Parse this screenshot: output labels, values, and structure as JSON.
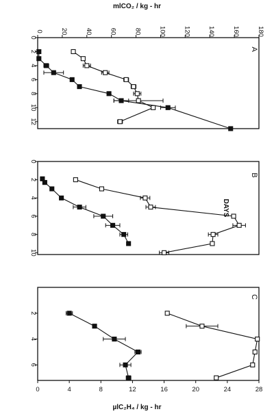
{
  "page": {
    "top_axis_label": "mlCO₂ / kg - hr",
    "side_axis_label": "DAYS",
    "bottom_axis_label": "µlC₂H₄ / kg - hr"
  },
  "chart_data": [
    {
      "type": "line",
      "panel_label": "A",
      "xlabel": "DAYS",
      "ylabel": "mlCO₂ / kg - hr",
      "x_ticks": [
        0,
        2,
        4,
        6,
        8,
        10,
        12
      ],
      "y_ticks": [
        0,
        20,
        40,
        60,
        80,
        100,
        120,
        140,
        160,
        180
      ],
      "xlim": [
        0,
        13
      ],
      "ylim": [
        0,
        180
      ],
      "series": [
        {
          "marker": "filled-square",
          "x": [
            2,
            3,
            4,
            5,
            6,
            7,
            8,
            9,
            10,
            13
          ],
          "y": [
            1,
            1,
            7,
            13,
            28,
            34,
            58,
            68,
            106,
            157
          ],
          "err": [
            0,
            0,
            2,
            8,
            0,
            0,
            0,
            6,
            6,
            0
          ]
        },
        {
          "marker": "open-square",
          "x": [
            2,
            3,
            4,
            5,
            6,
            7,
            8,
            9,
            10,
            12
          ],
          "y": [
            29,
            37,
            40,
            55,
            72,
            78,
            81,
            82,
            94,
            67
          ],
          "err": [
            0,
            0,
            3,
            3,
            2,
            2,
            3,
            20,
            0,
            2
          ]
        }
      ]
    },
    {
      "type": "line",
      "panel_label": "B",
      "xlabel": "DAYS",
      "ylabel": "µlC₂H₄ / kg - hr",
      "x_ticks": [
        0,
        2,
        4,
        6,
        8,
        10
      ],
      "xlim": [
        0,
        10.2
      ],
      "ylim": [
        0,
        28
      ],
      "series": [
        {
          "marker": "filled-square",
          "x": [
            1.9,
            2.3,
            3,
            4,
            5,
            6,
            7,
            8,
            9
          ],
          "y": [
            0.6,
            0.9,
            1.8,
            3,
            5.3,
            8.3,
            9.5,
            10.9,
            11.5
          ],
          "err": [
            0,
            0,
            0,
            0,
            0.8,
            1.2,
            0.9,
            0.5,
            0
          ]
        },
        {
          "marker": "open-square",
          "x": [
            2,
            3,
            4,
            5,
            6,
            7,
            8,
            9,
            10
          ],
          "y": [
            4.8,
            8.1,
            13.6,
            14.3,
            24.8,
            25.5,
            22.2,
            22.1,
            16
          ],
          "err": [
            0,
            0,
            0.6,
            0.6,
            0,
            0.8,
            0.6,
            0,
            0.6
          ]
        }
      ]
    },
    {
      "type": "line",
      "panel_label": "C",
      "xlabel": "DAYS",
      "ylabel": "µlC₂H₄ / kg - hr",
      "x_ticks": [
        2,
        4,
        6
      ],
      "y_ticks": [
        0,
        4,
        8,
        12,
        16,
        20,
        24,
        28
      ],
      "xlim": [
        0,
        7.2
      ],
      "ylim": [
        0,
        28
      ],
      "series": [
        {
          "marker": "filled-square",
          "x": [
            2,
            3,
            4,
            5,
            6,
            7
          ],
          "y": [
            4,
            7.2,
            9.7,
            12.7,
            11.1,
            11.5
          ],
          "err": [
            0.4,
            0,
            1.4,
            0.4,
            0.7,
            0.3
          ]
        },
        {
          "marker": "open-square",
          "x": [
            2,
            3,
            4,
            5,
            6,
            7
          ],
          "y": [
            16.4,
            20.8,
            27.8,
            27.5,
            27.2,
            22.6
          ],
          "err": [
            0,
            2,
            0,
            0,
            0,
            0
          ]
        }
      ]
    }
  ]
}
